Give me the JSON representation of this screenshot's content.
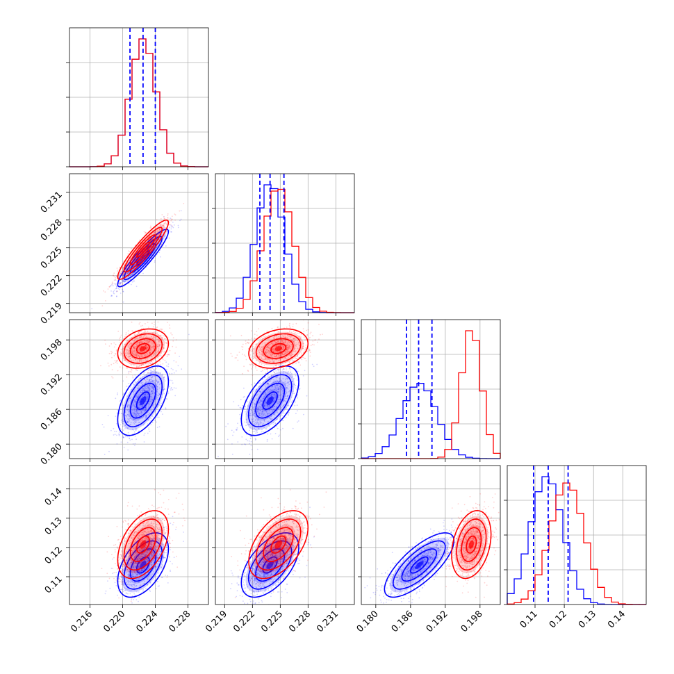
{
  "chart_data": {
    "type": "corner",
    "title": "",
    "parameters": [
      {
        "ticks": [
          0.216,
          0.22,
          0.224,
          0.228
        ],
        "range": [
          0.2135,
          0.2305
        ]
      },
      {
        "ticks": [
          0.219,
          0.222,
          0.225,
          0.228,
          0.231
        ],
        "range": [
          0.218,
          0.233
        ]
      },
      {
        "ticks": [
          0.18,
          0.186,
          0.192,
          0.198
        ],
        "range": [
          0.1775,
          0.2015
        ]
      },
      {
        "ticks": [
          0.11,
          0.12,
          0.13,
          0.14
        ],
        "range": [
          0.1005,
          0.148
        ]
      }
    ],
    "series": [
      {
        "color": "#0000ff",
        "means": [
          0.2225,
          0.2239,
          0.1875,
          0.114
        ],
        "stds": [
          0.00155,
          0.00155,
          0.003,
          0.0055
        ],
        "quantile_lines": [
          [
            0.2209,
            0.2225,
            0.224
          ],
          [
            0.2228,
            0.2239,
            0.2254
          ],
          [
            0.1853,
            0.1874,
            0.1897
          ],
          [
            0.1095,
            0.1145,
            0.1213
          ]
        ]
      },
      {
        "color": "#ff0000",
        "means": [
          0.2225,
          0.2248,
          0.1965,
          0.121
        ],
        "stds": [
          0.00155,
          0.0016,
          0.0017,
          0.0058
        ],
        "quantile_lines": []
      }
    ],
    "correlations": {
      "blue": {
        "0-1": 0.92,
        "0-2": 0.55,
        "0-3": 0.5,
        "1-2": 0.55,
        "1-3": 0.55,
        "2-3": 0.75
      },
      "red": {
        "0-1": 0.92,
        "0-2": 0.25,
        "0-3": 0.45,
        "1-2": 0.25,
        "1-3": 0.5,
        "2-3": 0.3
      }
    },
    "grid": true,
    "legend": "none"
  }
}
